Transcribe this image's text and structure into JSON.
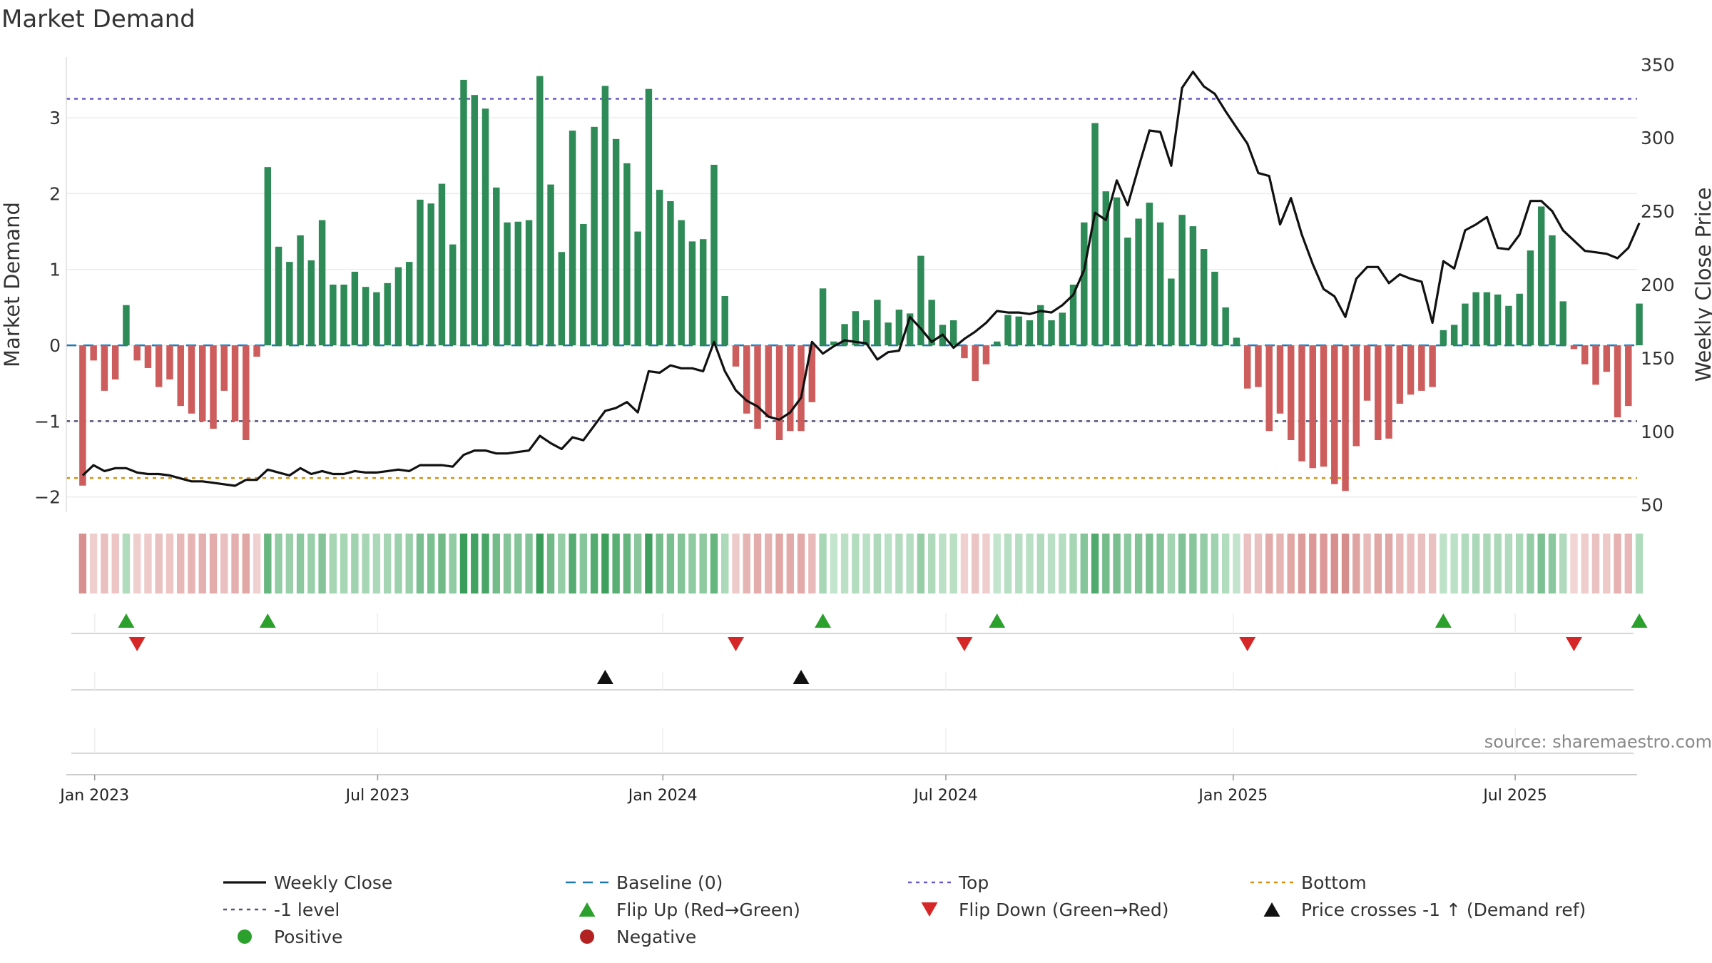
{
  "chart_data": {
    "type": "bar+line",
    "title": "Market Demand",
    "source": "source: sharemaestro.com",
    "left_axis": {
      "label": "Market Demand",
      "ylim": [
        -2.2,
        3.8
      ],
      "ticks": [
        -2,
        -1,
        0,
        1,
        2,
        3
      ],
      "tick_labels": [
        "−2",
        "−1",
        "0",
        "1",
        "2",
        "3"
      ]
    },
    "right_axis": {
      "label": "Weekly Close Price",
      "ylim": [
        45,
        355
      ],
      "ticks": [
        50,
        100,
        150,
        200,
        250,
        300,
        350
      ],
      "tick_labels": [
        "50",
        "100",
        "150",
        "200",
        "250",
        "300",
        "350"
      ]
    },
    "x_range": [
      -1.5,
      142.8
    ],
    "x_ticks": [
      {
        "pos": 1.1,
        "label": "Jan 2023"
      },
      {
        "pos": 27.1,
        "label": "Jul 2023"
      },
      {
        "pos": 53.3,
        "label": "Jan 2024"
      },
      {
        "pos": 79.3,
        "label": "Jul 2024"
      },
      {
        "pos": 105.7,
        "label": "Jan 2025"
      },
      {
        "pos": 131.6,
        "label": "Jul 2025"
      }
    ],
    "reference_lines": {
      "top": 3.25,
      "minus1": -1.0,
      "bottom": -1.75,
      "baseline": 0
    },
    "series": [
      {
        "name": "Market Demand",
        "values": [
          -1.85,
          -0.2,
          -0.6,
          -0.45,
          0.53,
          -0.2,
          -0.3,
          -0.55,
          -0.45,
          -0.8,
          -0.9,
          -1.0,
          -1.1,
          -0.6,
          -1.0,
          -1.25,
          -0.15,
          2.35,
          1.3,
          1.1,
          1.45,
          1.12,
          1.65,
          0.8,
          0.8,
          0.97,
          0.77,
          0.7,
          0.82,
          1.03,
          1.1,
          1.92,
          1.87,
          2.13,
          1.33,
          3.5,
          3.3,
          3.12,
          2.08,
          1.62,
          1.63,
          1.65,
          3.55,
          2.12,
          1.23,
          2.83,
          1.6,
          2.88,
          3.42,
          2.72,
          2.4,
          1.5,
          3.38,
          2.05,
          1.9,
          1.65,
          1.37,
          1.4,
          2.38,
          0.65,
          -0.28,
          -0.9,
          -1.1,
          -0.95,
          -1.25,
          -1.13,
          -1.13,
          -0.75,
          0.75,
          0.05,
          0.28,
          0.45,
          0.33,
          0.6,
          0.3,
          0.47,
          0.42,
          1.18,
          0.6,
          0.27,
          0.33,
          -0.17,
          -0.47,
          -0.25,
          0.05,
          0.4,
          0.38,
          0.33,
          0.53,
          0.33,
          0.43,
          0.8,
          1.62,
          2.93,
          2.03,
          1.95,
          1.42,
          1.67,
          1.88,
          1.62,
          0.88,
          1.72,
          1.57,
          1.27,
          0.97,
          0.5,
          0.1,
          -0.57,
          -0.55,
          -1.13,
          -0.9,
          -1.25,
          -1.53,
          -1.62,
          -1.6,
          -1.83,
          -1.92,
          -1.33,
          -0.73,
          -1.25,
          -1.23,
          -0.77,
          -0.65,
          -0.6,
          -0.55,
          0.2,
          0.27,
          0.55,
          0.7,
          0.7,
          0.67,
          0.52,
          0.68,
          1.25,
          1.83,
          1.45,
          0.58,
          -0.05,
          -0.25,
          -0.52,
          -0.35,
          -0.95,
          -0.8,
          0.55
        ]
      },
      {
        "name": "Weekly Close",
        "points": [
          [
            0,
            70
          ],
          [
            1,
            77
          ],
          [
            2,
            73
          ],
          [
            3,
            75
          ],
          [
            4,
            75
          ],
          [
            5,
            72
          ],
          [
            6,
            71
          ],
          [
            7,
            71
          ],
          [
            8,
            70
          ],
          [
            9,
            68
          ],
          [
            10,
            66
          ],
          [
            11,
            66
          ],
          [
            12,
            65
          ],
          [
            13,
            64
          ],
          [
            14,
            63
          ],
          [
            15,
            67
          ],
          [
            16,
            67
          ],
          [
            17,
            74
          ],
          [
            18,
            72
          ],
          [
            19,
            70
          ],
          [
            20,
            75
          ],
          [
            21,
            71
          ],
          [
            22,
            73
          ],
          [
            23,
            71
          ],
          [
            24,
            71
          ],
          [
            25,
            73
          ],
          [
            26,
            72
          ],
          [
            27,
            72
          ],
          [
            28,
            73
          ],
          [
            29,
            74
          ],
          [
            30,
            73
          ],
          [
            31,
            77
          ],
          [
            32,
            77
          ],
          [
            33,
            77
          ],
          [
            34,
            76
          ],
          [
            35,
            84
          ],
          [
            36,
            87
          ],
          [
            37,
            87
          ],
          [
            38,
            85
          ],
          [
            39,
            85
          ],
          [
            40,
            86
          ],
          [
            41,
            87
          ],
          [
            42,
            97
          ],
          [
            43,
            92
          ],
          [
            44,
            88
          ],
          [
            45,
            96
          ],
          [
            46,
            94
          ],
          [
            47,
            104
          ],
          [
            48,
            114
          ],
          [
            49,
            116
          ],
          [
            50,
            120
          ],
          [
            51,
            113
          ],
          [
            52,
            141
          ],
          [
            53,
            140
          ],
          [
            54,
            145
          ],
          [
            55,
            143
          ],
          [
            56,
            143
          ],
          [
            57,
            141
          ],
          [
            58,
            161
          ],
          [
            59,
            141
          ],
          [
            60,
            128
          ],
          [
            61,
            121
          ],
          [
            62,
            117
          ],
          [
            63,
            110
          ],
          [
            64,
            108
          ],
          [
            65,
            113
          ],
          [
            66,
            123
          ],
          [
            67,
            161
          ],
          [
            68,
            153
          ],
          [
            69,
            158
          ],
          [
            70,
            162
          ],
          [
            71,
            161
          ],
          [
            72,
            160
          ],
          [
            73,
            149
          ],
          [
            74,
            154
          ],
          [
            75,
            155
          ],
          [
            76,
            178
          ],
          [
            77,
            170
          ],
          [
            78,
            161
          ],
          [
            79,
            166
          ],
          [
            80,
            157
          ],
          [
            81,
            163
          ],
          [
            82,
            168
          ],
          [
            83,
            174
          ],
          [
            84,
            182
          ],
          [
            85,
            181
          ],
          [
            86,
            181
          ],
          [
            87,
            180
          ],
          [
            88,
            182
          ],
          [
            89,
            181
          ],
          [
            90,
            186
          ],
          [
            91,
            193
          ],
          [
            92,
            210
          ],
          [
            93,
            249
          ],
          [
            94,
            244
          ],
          [
            95,
            271
          ],
          [
            96,
            254
          ],
          [
            97,
            280
          ],
          [
            98,
            305
          ],
          [
            99,
            304
          ],
          [
            100,
            281
          ],
          [
            101,
            334
          ],
          [
            102,
            345
          ],
          [
            103,
            335
          ],
          [
            104,
            330
          ],
          [
            105,
            318
          ],
          [
            106,
            307
          ],
          [
            107,
            296
          ],
          [
            108,
            276
          ],
          [
            109,
            274
          ],
          [
            110,
            241
          ],
          [
            111,
            259
          ],
          [
            112,
            234
          ],
          [
            113,
            214
          ],
          [
            114,
            197
          ],
          [
            115,
            192
          ],
          [
            116,
            178
          ],
          [
            117,
            204
          ],
          [
            118,
            212
          ],
          [
            119,
            212
          ],
          [
            120,
            201
          ],
          [
            121,
            207
          ],
          [
            122,
            204
          ],
          [
            123,
            202
          ],
          [
            124,
            174
          ],
          [
            125,
            216
          ],
          [
            126,
            211
          ],
          [
            127,
            237
          ],
          [
            128,
            241
          ],
          [
            129,
            246
          ],
          [
            130,
            225
          ],
          [
            131,
            224
          ],
          [
            132,
            234
          ],
          [
            133,
            257
          ],
          [
            134,
            257
          ],
          [
            135,
            250
          ],
          [
            136,
            237
          ],
          [
            137,
            230
          ],
          [
            138,
            223
          ],
          [
            139,
            222
          ],
          [
            140,
            221
          ],
          [
            141,
            218
          ],
          [
            142,
            225
          ],
          [
            143,
            242
          ]
        ]
      }
    ],
    "flip_up": [
      4,
      17,
      68,
      84,
      125,
      143
    ],
    "flip_down": [
      5,
      60,
      81,
      107,
      137
    ],
    "price_crosses": [
      48,
      66
    ],
    "colors": {
      "positive_bar": "#2e8b57",
      "negative_bar": "#cd5c5c",
      "line": "#111111",
      "baseline": "#1f77b4",
      "top": "#6a5acd",
      "minus1": "#555577",
      "bottom": "#d4920b",
      "flip_up": "#2ca02c",
      "flip_down": "#d62728",
      "cross": "#111111",
      "positive_dot": "#2ca02c",
      "negative_dot": "#b22222"
    },
    "legend": [
      {
        "key": "line",
        "label": "Weekly Close"
      },
      {
        "key": "baseline",
        "label": "Baseline (0)"
      },
      {
        "key": "top",
        "label": "Top"
      },
      {
        "key": "bottom",
        "label": "Bottom"
      },
      {
        "key": "minus1",
        "label": "-1 level"
      },
      {
        "key": "flip_up",
        "label": "Flip Up (Red→Green)"
      },
      {
        "key": "flip_down",
        "label": "Flip Down (Green→Red)"
      },
      {
        "key": "cross",
        "label": "Price crosses -1 ↑ (Demand ref)"
      },
      {
        "key": "positive_dot",
        "label": "Positive"
      },
      {
        "key": "negative_dot",
        "label": "Negative"
      }
    ]
  }
}
